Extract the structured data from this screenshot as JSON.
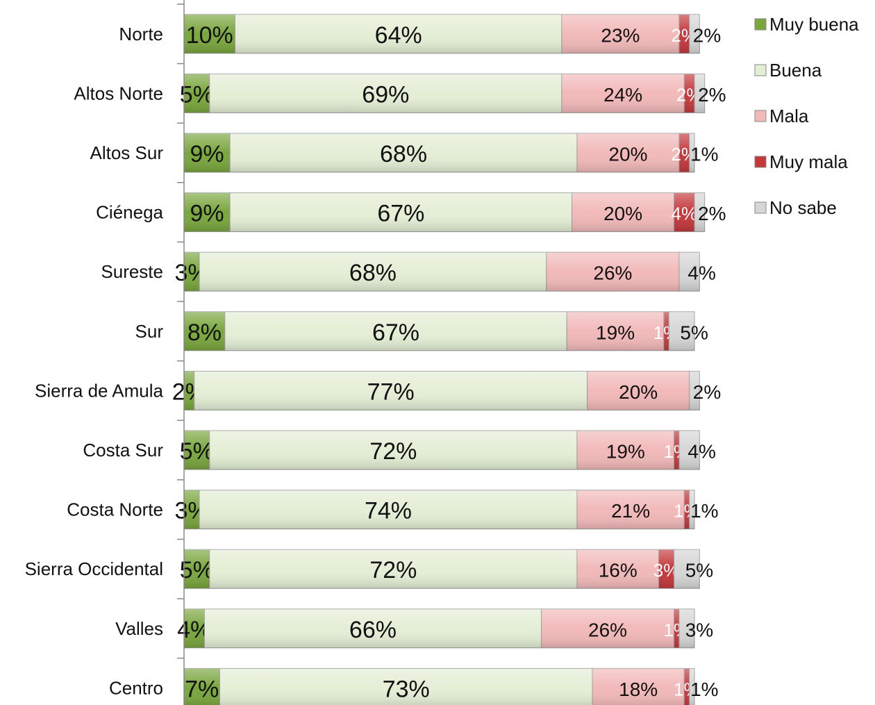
{
  "chart_data": {
    "type": "bar",
    "orientation": "horizontal",
    "stacked": true,
    "categories": [
      "Norte",
      "Altos Norte",
      "Altos Sur",
      "Ciénega",
      "Sureste",
      "Sur",
      "Sierra de Amula",
      "Costa Sur",
      "Costa Norte",
      "Sierra Occidental",
      "Valles",
      "Centro"
    ],
    "xlim": [
      0,
      100
    ],
    "legend": "right",
    "series": [
      {
        "name": "Muy buena",
        "color": "#7aa63e",
        "values": [
          10,
          5,
          9,
          9,
          3,
          8,
          2,
          5,
          3,
          5,
          4,
          7
        ],
        "value_labels": [
          "10%",
          "5%",
          "9%",
          "9%",
          "3%",
          "8%",
          "2%",
          "5%",
          "3%",
          "5%",
          "4%",
          "7%"
        ]
      },
      {
        "name": "Buena",
        "color": "#e4eed5",
        "values": [
          64,
          69,
          68,
          67,
          68,
          67,
          77,
          72,
          74,
          72,
          66,
          73
        ],
        "value_labels": [
          "64%",
          "69%",
          "68%",
          "67%",
          "68%",
          "67%",
          "77%",
          "72%",
          "74%",
          "72%",
          "66%",
          "73%"
        ]
      },
      {
        "name": "Mala",
        "color": "#f2b9b9",
        "values": [
          23,
          24,
          20,
          20,
          26,
          19,
          20,
          19,
          21,
          16,
          26,
          18
        ],
        "value_labels": [
          "23%",
          "24%",
          "20%",
          "20%",
          "26%",
          "19%",
          "20%",
          "19%",
          "21%",
          "16%",
          "26%",
          "18%"
        ]
      },
      {
        "name": "Muy mala",
        "color": "#c4383c",
        "values": [
          2,
          2,
          2,
          4,
          null,
          1,
          null,
          1,
          1,
          3,
          1,
          1
        ],
        "value_labels": [
          "2%",
          "2%",
          "2%",
          "4%",
          null,
          "1%",
          null,
          "1%",
          "1%",
          "3%",
          "1%",
          "1%"
        ]
      },
      {
        "name": "No sabe",
        "color": "#d6d6d6",
        "values": [
          2,
          2,
          1,
          2,
          4,
          5,
          2,
          4,
          1,
          5,
          3,
          1
        ],
        "value_labels": [
          "2%",
          "2%",
          "1%",
          "2%",
          "4%",
          "5%",
          "2%",
          "4%",
          "1%",
          "5%",
          "3%",
          "1%"
        ]
      }
    ]
  }
}
